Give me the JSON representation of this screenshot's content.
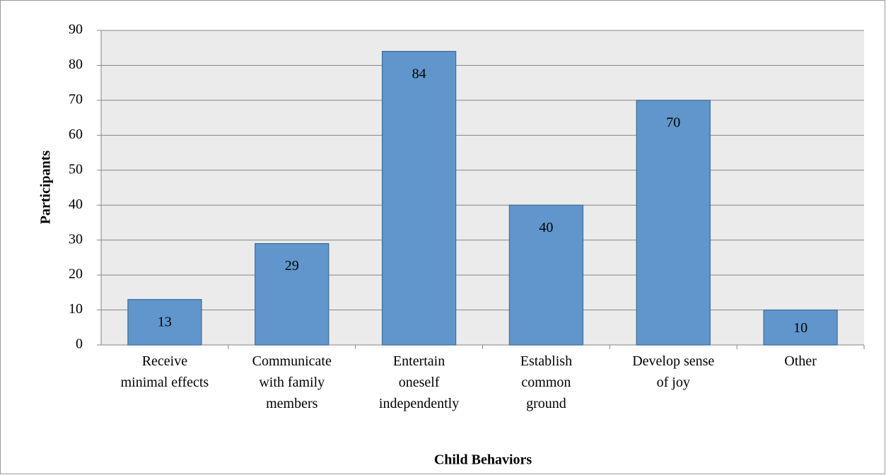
{
  "chart_data": {
    "type": "bar",
    "x_label": "Child Behaviors",
    "y_label": "Participants",
    "categories": [
      "Receive\nminimal effects",
      "Communicate\nwith family\nmembers",
      "Entertain\noneself\nindependently",
      "Establish\ncommon\nground",
      "Develop sense\nof joy",
      "Other"
    ],
    "values": [
      13,
      29,
      84,
      40,
      70,
      10
    ],
    "color": "#6096cc",
    "ylim": [
      0,
      90
    ],
    "yticks": [
      0,
      10,
      20,
      30,
      40,
      50,
      60,
      70,
      80,
      90
    ],
    "grid": true
  }
}
